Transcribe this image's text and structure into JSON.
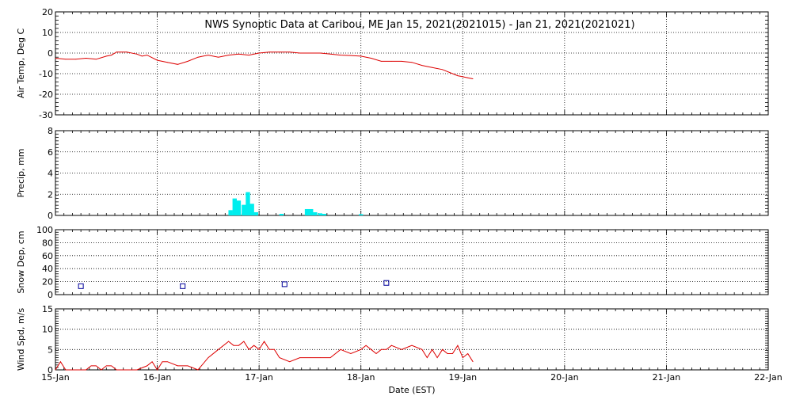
{
  "title": "NWS Synoptic Data at Caribou, ME   Jan 15, 2021(2021015) - Jan 21, 2021(2021021)",
  "xlabel": "Date (EST)",
  "x_ticks": [
    "15-Jan",
    "16-Jan",
    "17-Jan",
    "18-Jan",
    "19-Jan",
    "20-Jan",
    "21-Jan",
    "22-Jan"
  ],
  "colors": {
    "temp": "#dd0000",
    "precip": "#00eeee",
    "snow": "#000099",
    "wind": "#dd0000",
    "grid": "#000000"
  },
  "chart_data": [
    {
      "type": "line",
      "ylabel": "Air Temp, Deg C",
      "ylim": [
        -30,
        20
      ],
      "yticks": [
        "20",
        "10",
        "0",
        "-10",
        "-20",
        "-30"
      ],
      "ytick_values": [
        20,
        10,
        0,
        -10,
        -20,
        -30
      ],
      "x_unit": "days since 15-Jan",
      "series": [
        {
          "color": "#dd0000",
          "x": [
            0,
            0.1,
            0.2,
            0.3,
            0.4,
            0.5,
            0.55,
            0.6,
            0.7,
            0.8,
            0.85,
            0.9,
            1.0,
            1.1,
            1.2,
            1.3,
            1.4,
            1.5,
            1.6,
            1.7,
            1.8,
            1.9,
            2.0,
            2.1,
            2.2,
            2.3,
            2.4,
            2.5,
            2.6,
            2.7,
            2.8,
            2.9,
            3.0,
            3.1,
            3.2,
            3.3,
            3.4,
            3.5,
            3.6,
            3.7,
            3.8,
            3.9,
            3.95,
            4.0,
            4.05,
            4.1
          ],
          "y": [
            -2.5,
            -3,
            -3,
            -2.5,
            -3,
            -1.5,
            -1,
            0.5,
            0.5,
            -0.5,
            -1.5,
            -1,
            -3.5,
            -4.5,
            -5.5,
            -4,
            -2,
            -1,
            -2,
            -1,
            -0.5,
            -1,
            0,
            0.5,
            0.5,
            0.5,
            0,
            0,
            0,
            -0.5,
            -1,
            -1.2,
            -1.5,
            -2.5,
            -4,
            -4,
            -4,
            -4.5,
            -6,
            -7,
            -8,
            -10,
            -11,
            -11.5,
            -12,
            -12.5
          ]
        }
      ]
    },
    {
      "type": "bar",
      "ylabel": "Precip, mm",
      "ylim": [
        0,
        8
      ],
      "yticks": [
        "8",
        "6",
        "4",
        "2",
        "0"
      ],
      "ytick_values": [
        8,
        6,
        4,
        2,
        0
      ],
      "x_unit": "days since 15-Jan",
      "bar_width_days": 0.042,
      "x": [
        1.72,
        1.76,
        1.8,
        1.85,
        1.89,
        1.93,
        1.97,
        2.22,
        2.47,
        2.51,
        2.55,
        2.6,
        2.64,
        3.0
      ],
      "values": [
        0.5,
        1.6,
        1.4,
        1.0,
        2.2,
        1.1,
        0.3,
        0.15,
        0.6,
        0.6,
        0.3,
        0.2,
        0.15,
        0.12
      ]
    },
    {
      "type": "scatter",
      "ylabel": "Snow Dep, cm",
      "ylim": [
        0,
        100
      ],
      "yticks": [
        "100",
        "80",
        "60",
        "40",
        "20",
        "0"
      ],
      "ytick_values": [
        100,
        80,
        60,
        40,
        20,
        0
      ],
      "x_unit": "days since 15-Jan",
      "x": [
        0.25,
        1.25,
        2.25,
        3.25
      ],
      "values": [
        13,
        13,
        16,
        18
      ]
    },
    {
      "type": "line",
      "ylabel": "Wind Spd, m/s",
      "ylim": [
        0,
        15
      ],
      "yticks": [
        "15",
        "10",
        "5",
        "0"
      ],
      "ytick_values": [
        15,
        10,
        5,
        0
      ],
      "x_unit": "days since 15-Jan",
      "series": [
        {
          "color": "#dd0000",
          "x": [
            0,
            0.05,
            0.1,
            0.2,
            0.3,
            0.35,
            0.4,
            0.45,
            0.5,
            0.55,
            0.6,
            0.7,
            0.8,
            0.9,
            0.95,
            1.0,
            1.05,
            1.1,
            1.2,
            1.3,
            1.4,
            1.5,
            1.6,
            1.7,
            1.75,
            1.8,
            1.85,
            1.9,
            1.95,
            2.0,
            2.05,
            2.1,
            2.15,
            2.2,
            2.3,
            2.4,
            2.5,
            2.6,
            2.7,
            2.8,
            2.9,
            3.0,
            3.05,
            3.1,
            3.15,
            3.2,
            3.25,
            3.3,
            3.4,
            3.5,
            3.6,
            3.65,
            3.7,
            3.75,
            3.8,
            3.85,
            3.9,
            3.95,
            4.0,
            4.05,
            4.1
          ],
          "y": [
            0,
            2,
            0,
            0,
            0,
            1,
            1,
            0,
            1,
            1,
            0,
            0,
            0,
            1,
            2,
            0,
            2,
            2,
            1,
            1,
            0,
            3,
            5,
            7,
            6,
            6,
            7,
            5,
            6,
            5,
            7,
            5,
            5,
            3,
            2,
            3,
            3,
            3,
            3,
            5,
            4,
            5,
            6,
            5,
            4,
            5,
            5,
            6,
            5,
            6,
            5,
            3,
            5,
            3,
            5,
            4,
            4,
            6,
            3,
            4,
            2
          ]
        }
      ]
    }
  ]
}
